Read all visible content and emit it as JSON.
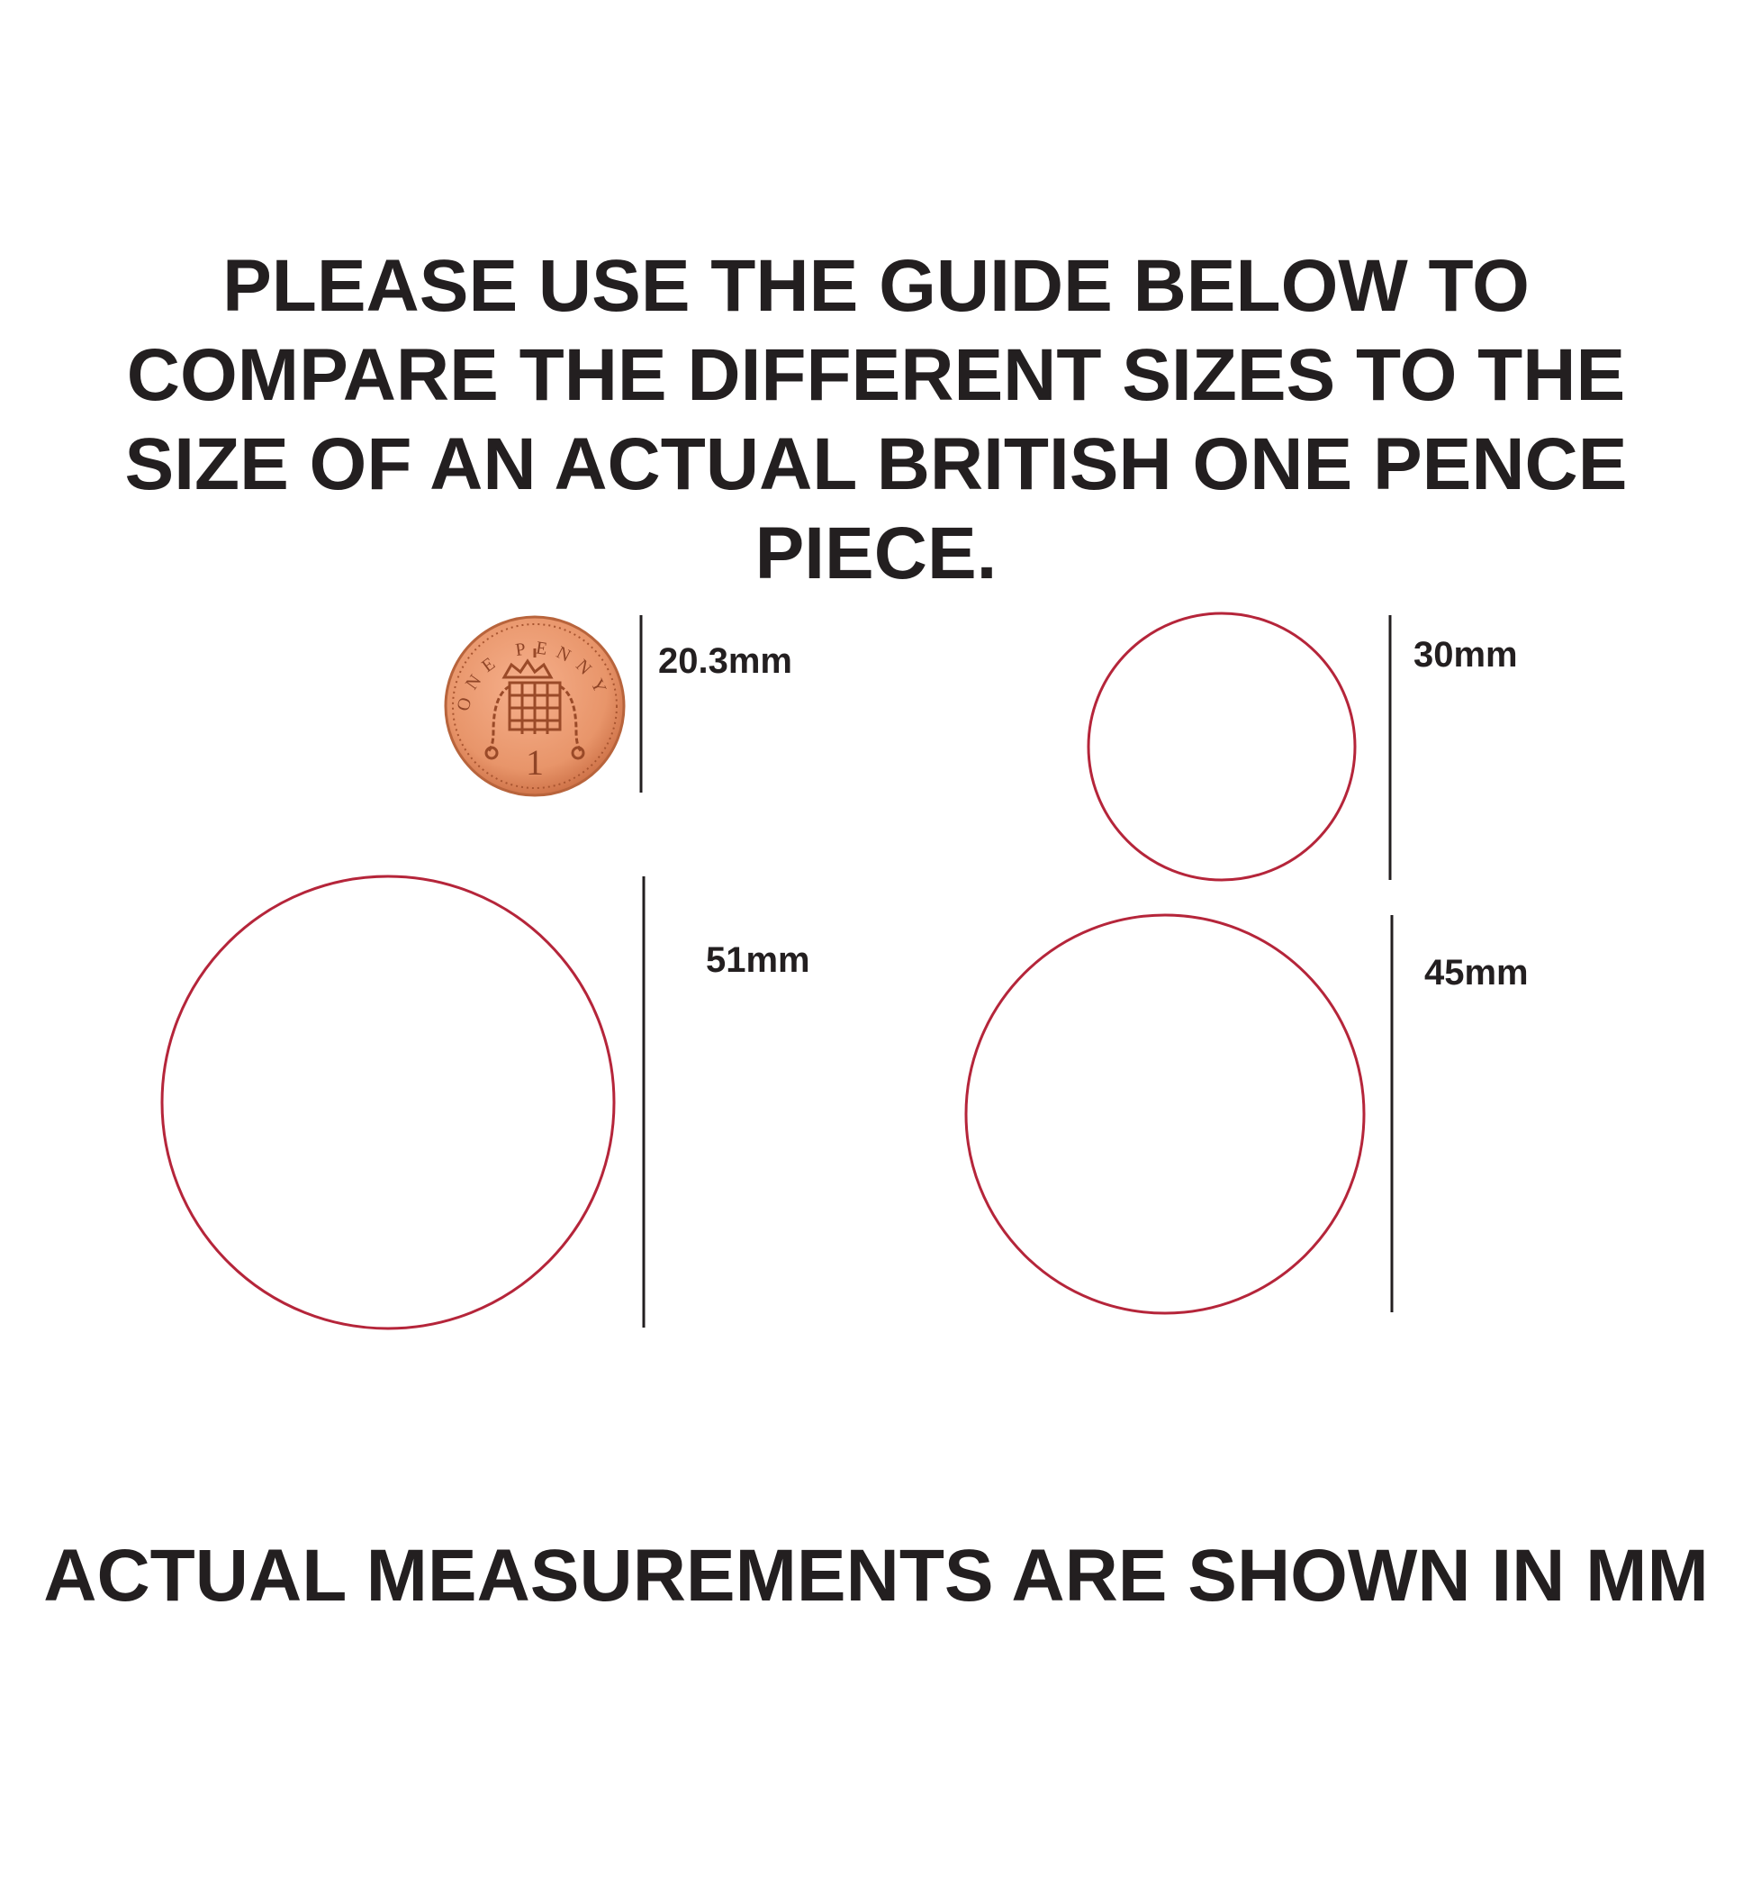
{
  "heading": {
    "lines": [
      "PLEASE USE THE GUIDE BELOW TO",
      "COMPARE THE DIFFERENT SIZES TO THE",
      "SIZE OF AN ACTUAL BRITISH ONE PENCE",
      "PIECE."
    ]
  },
  "items": [
    {
      "kind": "coin",
      "label": "20.3mm",
      "coin_text": "ONE PENNY",
      "coin_value": "1"
    },
    {
      "kind": "circle",
      "label": "30mm"
    },
    {
      "kind": "circle",
      "label": "51mm"
    },
    {
      "kind": "circle",
      "label": "45mm"
    }
  ],
  "footer": "ACTUAL MEASUREMENTS ARE SHOWN IN MM",
  "colors": {
    "circle_stroke": "#b5253a",
    "text": "#231f20",
    "coin": "#e8956a"
  }
}
